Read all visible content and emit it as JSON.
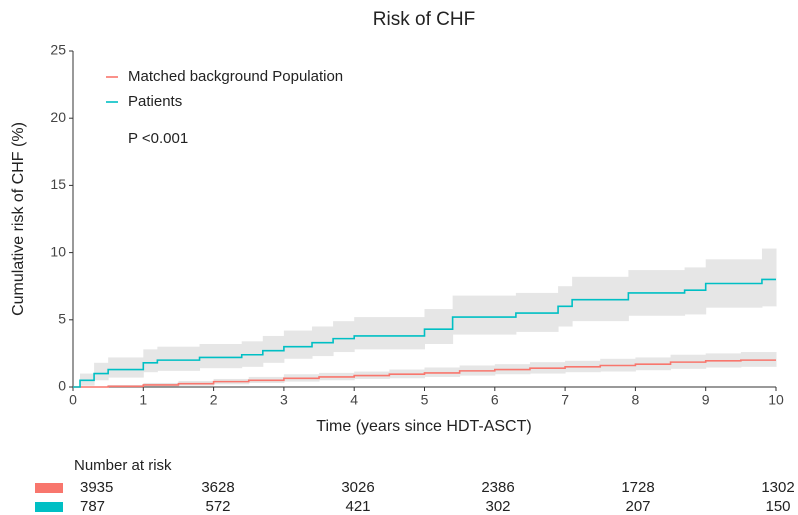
{
  "chart_data": {
    "type": "step",
    "title": "Risk of CHF",
    "x_label": "Time (years since HDT-ASCT)",
    "y_label": "Cumulative risk of CHF (%)",
    "annotation": "P <0.001",
    "xlim": [
      0,
      10
    ],
    "xticks": [
      0,
      1,
      2,
      3,
      4,
      5,
      6,
      7,
      8,
      9,
      10
    ],
    "ylim": [
      0,
      25
    ],
    "yticks": [
      0,
      5,
      10,
      15,
      20,
      25
    ],
    "grid": false,
    "legend_position": "top-left",
    "band_color": "#e6e6e6",
    "series": [
      {
        "name": "Matched background Population",
        "color": "#F8766D",
        "x": [
          0,
          0.5,
          1,
          1.5,
          2,
          2.5,
          3,
          3.5,
          4,
          4.5,
          5,
          5.5,
          6,
          6.5,
          7,
          7.5,
          8,
          8.5,
          9,
          9.5,
          10
        ],
        "values": [
          0,
          0.05,
          0.15,
          0.25,
          0.4,
          0.5,
          0.65,
          0.75,
          0.85,
          0.95,
          1.05,
          1.2,
          1.3,
          1.4,
          1.5,
          1.6,
          1.7,
          1.85,
          1.95,
          2.0,
          2.0
        ],
        "upper": [
          0,
          0.15,
          0.3,
          0.45,
          0.6,
          0.75,
          0.95,
          1.05,
          1.15,
          1.3,
          1.45,
          1.6,
          1.7,
          1.85,
          1.95,
          2.1,
          2.2,
          2.4,
          2.5,
          2.6,
          2.6
        ],
        "lower": [
          0,
          0,
          0.05,
          0.1,
          0.2,
          0.3,
          0.4,
          0.5,
          0.6,
          0.65,
          0.75,
          0.85,
          0.95,
          1.0,
          1.1,
          1.15,
          1.25,
          1.35,
          1.45,
          1.5,
          1.5
        ]
      },
      {
        "name": "Patients",
        "color": "#00BFC4",
        "x": [
          0,
          0.1,
          0.3,
          0.5,
          1.0,
          1.2,
          1.8,
          2.4,
          2.7,
          3.0,
          3.4,
          3.7,
          4.0,
          5.0,
          5.4,
          6.3,
          6.9,
          7.1,
          7.9,
          8.7,
          9.0,
          9.8,
          10
        ],
        "values": [
          0,
          0.5,
          1.0,
          1.3,
          1.8,
          2.0,
          2.2,
          2.4,
          2.7,
          3.0,
          3.3,
          3.6,
          3.8,
          4.3,
          5.2,
          5.5,
          6.0,
          6.5,
          7.0,
          7.2,
          7.7,
          8.0,
          8.0
        ],
        "upper": [
          0,
          1.0,
          1.8,
          2.2,
          2.8,
          3.0,
          3.2,
          3.4,
          3.8,
          4.2,
          4.5,
          4.9,
          5.2,
          5.8,
          6.8,
          7.0,
          7.5,
          8.2,
          8.7,
          8.9,
          9.5,
          10.3,
          10.3
        ],
        "lower": [
          0,
          0.1,
          0.5,
          0.7,
          1.1,
          1.2,
          1.4,
          1.5,
          1.8,
          2.1,
          2.3,
          2.6,
          2.8,
          3.2,
          3.9,
          4.1,
          4.5,
          4.9,
          5.3,
          5.4,
          5.9,
          6.0,
          6.0
        ]
      }
    ],
    "risk_table": {
      "title": "Number at risk",
      "times": [
        0,
        2,
        4,
        6,
        8,
        10
      ],
      "rows": [
        [
          3935,
          3628,
          3026,
          2386,
          1728,
          1302
        ],
        [
          787,
          572,
          421,
          302,
          207,
          150
        ]
      ]
    }
  }
}
